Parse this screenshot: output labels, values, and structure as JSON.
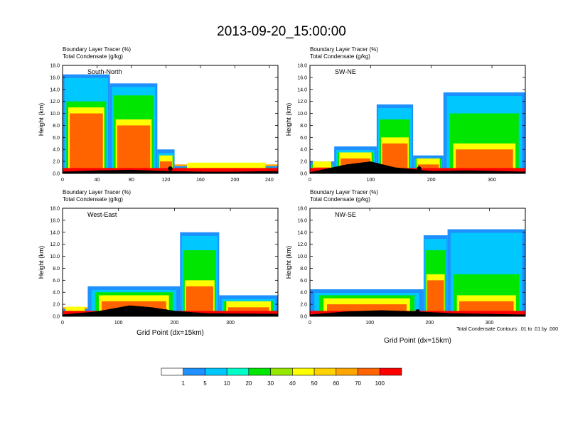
{
  "figure": {
    "title": "2013-09-20_15:00:00",
    "footnote": "Total Condensate Contours: .01 to .01 by .000"
  },
  "chart_data": [
    {
      "type": "heatmap",
      "panel_label": "South-North",
      "subtitle_lines": [
        "Boundary Layer Tracer    (%)",
        "Total Condensate    (g/kg)"
      ],
      "xlabel": "",
      "ylabel": "Height (km)",
      "xlim": [
        0,
        250
      ],
      "ylim": [
        0,
        18
      ],
      "xticks": [
        "0",
        "40",
        "80",
        "120",
        "160",
        "200",
        "240"
      ],
      "yticks": [
        "0.0",
        "2.0",
        "4.0",
        "6.0",
        "8.0",
        "10.0",
        "12.0",
        "14.0",
        "16.0",
        "18.0"
      ],
      "columns": [
        {
          "x": [
            0,
            55
          ],
          "top": 16.5,
          "core_top": 10,
          "green_top": 12
        },
        {
          "x": [
            55,
            110
          ],
          "top": 15.0,
          "core_top": 8,
          "green_top": 13
        },
        {
          "x": [
            110,
            130
          ],
          "top": 4.0,
          "core_top": 2,
          "green_top": 3
        },
        {
          "x": [
            130,
            250
          ],
          "top": 1.2,
          "core_top": 0.8,
          "green_top": 1.0
        }
      ],
      "terrain": [
        [
          0,
          0.3
        ],
        [
          40,
          0.5
        ],
        [
          80,
          0.6
        ],
        [
          120,
          0.4
        ],
        [
          160,
          0.3
        ],
        [
          200,
          0.3
        ],
        [
          250,
          0.4
        ]
      ],
      "marker_x": 125
    },
    {
      "type": "heatmap",
      "panel_label": "SW-NE",
      "subtitle_lines": [
        "Boundary Layer Tracer    (%)",
        "Total Condensate    (g/kg)"
      ],
      "xlabel": "",
      "ylabel": "Height (km)",
      "xlim": [
        0,
        355
      ],
      "ylim": [
        0,
        18
      ],
      "xticks": [
        "0",
        "100",
        "200",
        "300"
      ],
      "yticks": [
        "0.0",
        "2.0",
        "4.0",
        "6.0",
        "8.0",
        "10.0",
        "12.0",
        "14.0",
        "16.0",
        "18.0"
      ],
      "columns": [
        {
          "x": [
            0,
            40
          ],
          "top": 2.0,
          "core_top": 1.0,
          "green_top": 1.5
        },
        {
          "x": [
            40,
            110
          ],
          "top": 4.5,
          "core_top": 2.5,
          "green_top": 3.5
        },
        {
          "x": [
            110,
            170
          ],
          "top": 11.5,
          "core_top": 5,
          "green_top": 9
        },
        {
          "x": [
            170,
            220
          ],
          "top": 3.0,
          "core_top": 1.5,
          "green_top": 2.5
        },
        {
          "x": [
            220,
            355
          ],
          "top": 13.5,
          "core_top": 4,
          "green_top": 10
        }
      ],
      "terrain": [
        [
          0,
          0.2
        ],
        [
          60,
          1.5
        ],
        [
          100,
          2.0
        ],
        [
          140,
          1.0
        ],
        [
          200,
          0.4
        ],
        [
          260,
          0.5
        ],
        [
          355,
          0.3
        ]
      ],
      "marker_x": 180
    },
    {
      "type": "heatmap",
      "panel_label": "West-East",
      "subtitle_lines": [
        "Boundary Layer Tracer    (%)",
        "Total Condensate    (g/kg)"
      ],
      "xlabel": "Grid Point (dx=15km)",
      "ylabel": "Height (km)",
      "xlim": [
        0,
        385
      ],
      "ylim": [
        0,
        18
      ],
      "xticks": [
        "0",
        "100",
        "200",
        "300"
      ],
      "yticks": [
        "0.0",
        "2.0",
        "4.0",
        "6.0",
        "8.0",
        "10.0",
        "12.0",
        "14.0",
        "16.0",
        "18.0"
      ],
      "columns": [
        {
          "x": [
            0,
            45
          ],
          "top": 1.2,
          "core_top": 0.6,
          "green_top": 1.0
        },
        {
          "x": [
            45,
            210
          ],
          "top": 5.0,
          "core_top": 2.5,
          "green_top": 4.0
        },
        {
          "x": [
            210,
            280
          ],
          "top": 14.0,
          "core_top": 5,
          "green_top": 11
        },
        {
          "x": [
            280,
            385
          ],
          "top": 3.5,
          "core_top": 1.5,
          "green_top": 2.5
        }
      ],
      "terrain": [
        [
          0,
          0.3
        ],
        [
          60,
          0.8
        ],
        [
          120,
          1.8
        ],
        [
          160,
          1.5
        ],
        [
          200,
          0.9
        ],
        [
          260,
          0.5
        ],
        [
          385,
          0.4
        ]
      ],
      "marker_x": 185
    },
    {
      "type": "heatmap",
      "panel_label": "NW-SE",
      "subtitle_lines": [
        "Boundary Layer Tracer    (%)",
        "Total Condensate    (g/kg)"
      ],
      "xlabel": "Grid Point (dx=15km)",
      "ylabel": "Height (km)",
      "xlim": [
        0,
        360
      ],
      "ylim": [
        0,
        18
      ],
      "xticks": [
        "0",
        "100",
        "200",
        "300"
      ],
      "yticks": [
        "0.0",
        "2.0",
        "4.0",
        "6.0",
        "8.0",
        "10.0",
        "12.0",
        "14.0",
        "16.0",
        "18.0"
      ],
      "columns": [
        {
          "x": [
            0,
            190
          ],
          "top": 4.5,
          "core_top": 2.0,
          "green_top": 3.5
        },
        {
          "x": [
            190,
            230
          ],
          "top": 13.5,
          "core_top": 6,
          "green_top": 11
        },
        {
          "x": [
            230,
            360
          ],
          "top": 14.5,
          "core_top": 2.5,
          "green_top": 7
        }
      ],
      "terrain": [
        [
          0,
          0.3
        ],
        [
          60,
          0.8
        ],
        [
          120,
          1.0
        ],
        [
          180,
          0.8
        ],
        [
          240,
          0.5
        ],
        [
          300,
          0.4
        ],
        [
          360,
          0.3
        ]
      ],
      "marker_x": 180
    }
  ],
  "colorbar": {
    "colors": [
      "#ffffff",
      "#1e90ff",
      "#00c8ff",
      "#00ffc8",
      "#00e600",
      "#96e600",
      "#ffff00",
      "#ffd200",
      "#ffa500",
      "#ff6400",
      "#ff0000"
    ],
    "labels": [
      "1",
      "5",
      "10",
      "20",
      "30",
      "40",
      "50",
      "60",
      "70",
      "100"
    ]
  }
}
